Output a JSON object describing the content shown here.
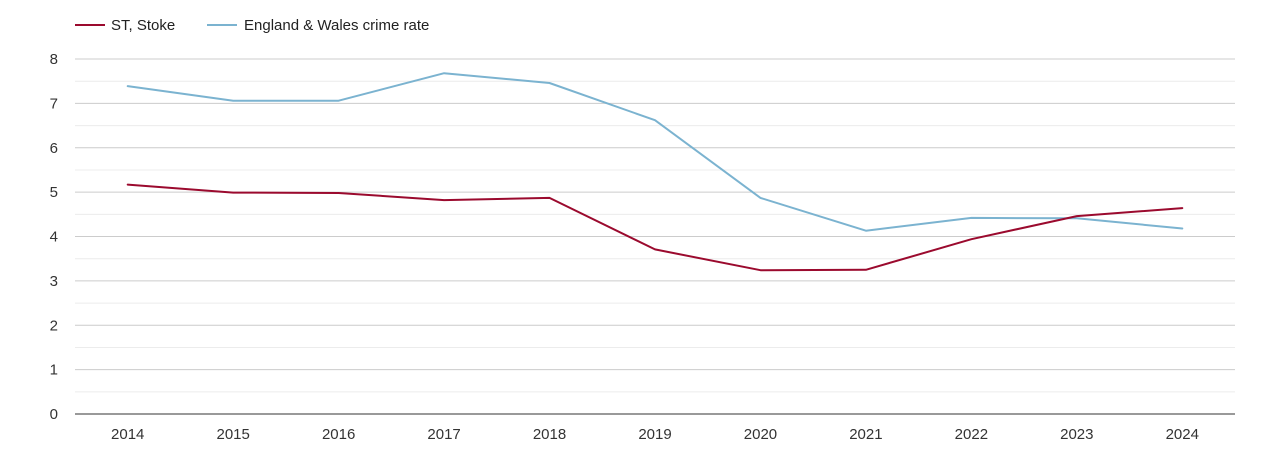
{
  "chart_data": {
    "type": "line",
    "title": "",
    "xlabel": "",
    "ylabel": "",
    "categories": [
      "2014",
      "2015",
      "2016",
      "2017",
      "2018",
      "2019",
      "2020",
      "2021",
      "2022",
      "2023",
      "2024"
    ],
    "ylim": [
      0,
      8
    ],
    "yticks": [
      0,
      1,
      2,
      3,
      4,
      5,
      6,
      7,
      8
    ],
    "grid": true,
    "legend_position": "top-left",
    "series": [
      {
        "name": "ST, Stoke",
        "color": "#9b0a2e",
        "values": [
          5.17,
          4.99,
          4.98,
          4.82,
          4.87,
          3.71,
          3.24,
          3.25,
          3.94,
          4.46,
          4.64
        ]
      },
      {
        "name": "England & Wales crime rate",
        "color": "#7bb3d0",
        "values": [
          7.39,
          7.06,
          7.06,
          7.68,
          7.46,
          6.62,
          4.87,
          4.13,
          4.42,
          4.41,
          4.18
        ]
      }
    ]
  }
}
